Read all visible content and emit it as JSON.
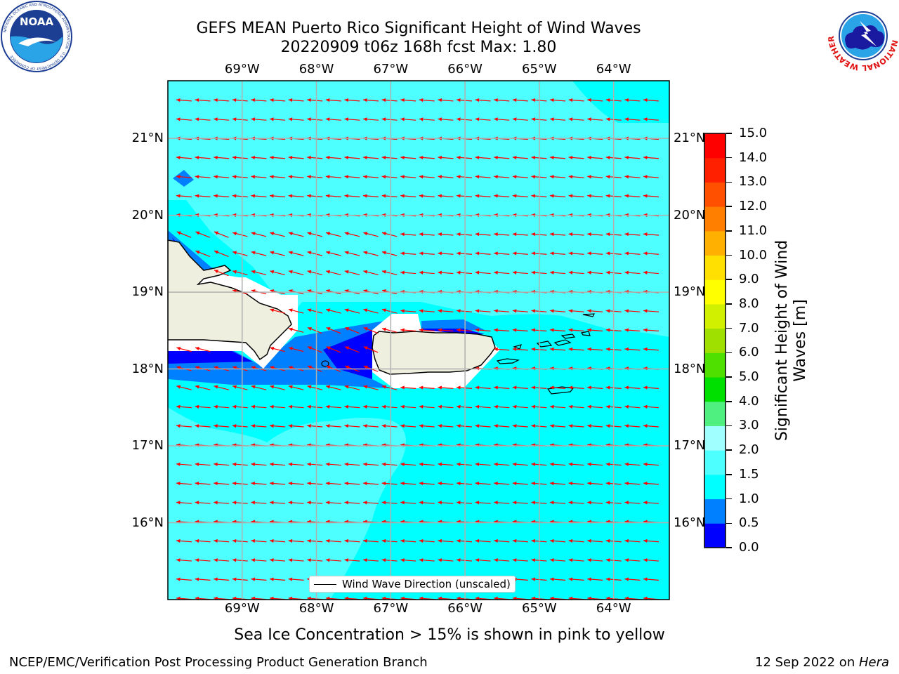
{
  "header": {
    "title_line1": "GEFS MEAN Puerto Rico Significant Height of Wind Waves",
    "title_line2": "20220909 t06z 168h fcst   Max: 1.80"
  },
  "logos": {
    "noaa": {
      "icon": "noaa-logo",
      "text": "NOAA",
      "ring_text": "NATIONAL OCEANIC AND ATMOSPHERIC ADMINISTRATION · U.S. DEPARTMENT OF COMMERCE"
    },
    "nws": {
      "icon": "nws-logo",
      "ring_text": "NATIONAL WEATHER SERVICE"
    }
  },
  "map": {
    "lon_range": [
      -70.0,
      -63.25
    ],
    "lat_range": [
      15.0,
      21.75
    ],
    "lon_ticks": [
      {
        "value": -69,
        "label": "69°W"
      },
      {
        "value": -68,
        "label": "68°W"
      },
      {
        "value": -67,
        "label": "67°W"
      },
      {
        "value": -66,
        "label": "66°W"
      },
      {
        "value": -65,
        "label": "65°W"
      },
      {
        "value": -64,
        "label": "64°W"
      }
    ],
    "lat_ticks": [
      {
        "value": 21,
        "label": "21°N"
      },
      {
        "value": 20,
        "label": "20°N"
      },
      {
        "value": 19,
        "label": "19°N"
      },
      {
        "value": 18,
        "label": "18°N"
      },
      {
        "value": 17,
        "label": "17°N"
      },
      {
        "value": 16,
        "label": "16°N"
      }
    ],
    "vector_direction": "toward the west, turning south-southwest along the coasts",
    "vector_color": "#ff0000",
    "land_color": "#efefdf",
    "legend_label": "Wind Wave Direction (unscaled)"
  },
  "colorbar": {
    "title": "Significant Height of Wind Waves [m]",
    "title_line1": "Significant Height of Wind",
    "title_line2": "Waves [m]",
    "bounds": [
      0.0,
      0.5,
      1.0,
      1.5,
      2.0,
      3.0,
      4.0,
      5.0,
      6.0,
      7.0,
      8.0,
      9.0,
      10.0,
      11.0,
      12.0,
      13.0,
      14.0,
      15.0
    ],
    "labels": [
      "0.0",
      "0.5",
      "1.0",
      "1.5",
      "2.0",
      "3.0",
      "4.0",
      "5.0",
      "6.0",
      "7.0",
      "8.0",
      "9.0",
      "10.0",
      "11.0",
      "12.0",
      "13.0",
      "14.0",
      "15.0"
    ],
    "colors": [
      "#0000ff",
      "#0080ff",
      "#00ffff",
      "#4dffff",
      "#a0ffff",
      "#50f080",
      "#00e000",
      "#50e000",
      "#a0e000",
      "#d0f000",
      "#ffff00",
      "#ffe000",
      "#ffb000",
      "#ff8000",
      "#ff5000",
      "#ff2000",
      "#ff0000"
    ]
  },
  "footer": {
    "ice_note": "Sea Ice Concentration > 15% is shown in pink to yellow",
    "branch": "NCEP/EMC/Verification Post Processing Product Generation Branch",
    "date": "12 Sep 2022 on ",
    "machine": "Hera"
  }
}
